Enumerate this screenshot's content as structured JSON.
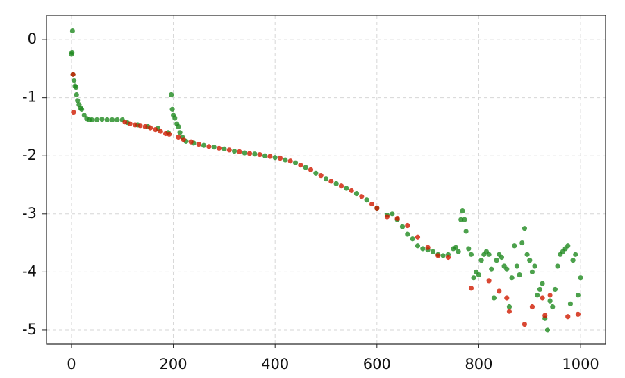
{
  "chart_data": {
    "type": "scatter",
    "xlim": [
      -49,
      1049
    ],
    "ylim": [
      -5.24,
      0.42
    ],
    "xticks": [
      0,
      200,
      400,
      600,
      800,
      1000
    ],
    "yticks": [
      0,
      -1,
      -2,
      -3,
      -4,
      -5
    ],
    "grid": true,
    "series": [
      {
        "color": "#1f8a1f",
        "x": [
          0,
          1,
          2,
          3,
          5,
          7,
          9,
          10,
          12,
          15,
          18,
          20,
          25,
          30,
          35,
          40,
          50,
          60,
          70,
          80,
          90,
          100,
          110,
          130,
          150,
          170,
          190,
          196,
          198,
          200,
          203,
          207,
          210,
          213,
          218,
          225,
          240,
          260,
          280,
          300,
          320,
          340,
          360,
          380,
          400,
          420,
          440,
          460,
          480,
          500,
          520,
          540,
          560,
          580,
          600,
          620,
          630,
          640,
          650,
          660,
          670,
          680,
          690,
          700,
          710,
          720,
          730,
          740,
          750,
          755,
          760,
          765,
          768,
          772,
          775,
          780,
          785,
          790,
          795,
          800,
          805,
          810,
          815,
          820,
          825,
          830,
          835,
          840,
          845,
          850,
          855,
          860,
          865,
          870,
          875,
          880,
          885,
          890,
          895,
          900,
          905,
          910,
          915,
          920,
          925,
          930,
          935,
          940,
          945,
          950,
          955,
          960,
          965,
          970,
          975,
          980,
          985,
          990,
          995,
          1000
        ],
        "values": [
          -0.25,
          -0.22,
          0.15,
          -0.6,
          -0.7,
          -0.8,
          -0.82,
          -0.95,
          -1.05,
          -1.12,
          -1.18,
          -1.2,
          -1.3,
          -1.36,
          -1.38,
          -1.38,
          -1.38,
          -1.37,
          -1.38,
          -1.38,
          -1.38,
          -1.38,
          -1.43,
          -1.47,
          -1.5,
          -1.53,
          -1.6,
          -0.95,
          -1.2,
          -1.3,
          -1.35,
          -1.45,
          -1.5,
          -1.6,
          -1.68,
          -1.75,
          -1.78,
          -1.82,
          -1.85,
          -1.88,
          -1.92,
          -1.95,
          -1.97,
          -2.0,
          -2.03,
          -2.07,
          -2.12,
          -2.2,
          -2.3,
          -2.4,
          -2.48,
          -2.56,
          -2.65,
          -2.76,
          -2.9,
          -3.02,
          -3.0,
          -3.1,
          -3.22,
          -3.35,
          -3.43,
          -3.55,
          -3.6,
          -3.62,
          -3.65,
          -3.7,
          -3.72,
          -3.7,
          -3.6,
          -3.58,
          -3.65,
          -3.1,
          -2.95,
          -3.1,
          -3.3,
          -3.6,
          -3.7,
          -4.1,
          -4.0,
          -4.05,
          -3.8,
          -3.7,
          -3.65,
          -3.7,
          -3.95,
          -4.45,
          -3.8,
          -3.7,
          -3.75,
          -3.9,
          -3.95,
          -4.6,
          -4.1,
          -3.55,
          -3.9,
          -4.05,
          -3.5,
          -3.25,
          -3.7,
          -3.8,
          -4.0,
          -3.9,
          -4.4,
          -4.3,
          -4.2,
          -4.8,
          -5.0,
          -4.5,
          -4.6,
          -4.3,
          -3.9,
          -3.7,
          -3.65,
          -3.6,
          -3.55,
          -4.55,
          -3.8,
          -3.7,
          -4.4,
          -4.1
        ]
      },
      {
        "color": "#d01a00",
        "x": [
          3,
          4,
          105,
          115,
          125,
          135,
          145,
          155,
          165,
          175,
          185,
          192,
          210,
          220,
          235,
          250,
          270,
          290,
          310,
          330,
          350,
          370,
          390,
          410,
          430,
          450,
          470,
          490,
          510,
          530,
          550,
          570,
          590,
          600,
          620,
          640,
          660,
          680,
          700,
          720,
          740,
          785,
          820,
          840,
          855,
          860,
          890,
          905,
          925,
          930,
          940,
          975,
          995
        ],
        "values": [
          -0.6,
          -1.25,
          -1.42,
          -1.45,
          -1.47,
          -1.48,
          -1.5,
          -1.52,
          -1.55,
          -1.58,
          -1.62,
          -1.63,
          -1.68,
          -1.72,
          -1.76,
          -1.8,
          -1.84,
          -1.87,
          -1.9,
          -1.93,
          -1.96,
          -1.98,
          -2.01,
          -2.04,
          -2.09,
          -2.16,
          -2.24,
          -2.34,
          -2.44,
          -2.52,
          -2.6,
          -2.7,
          -2.83,
          -2.9,
          -3.05,
          -3.08,
          -3.2,
          -3.4,
          -3.58,
          -3.72,
          -3.75,
          -4.28,
          -4.15,
          -4.33,
          -4.45,
          -4.68,
          -4.9,
          -4.6,
          -4.45,
          -4.75,
          -4.4,
          -4.77,
          -4.73
        ]
      }
    ]
  }
}
